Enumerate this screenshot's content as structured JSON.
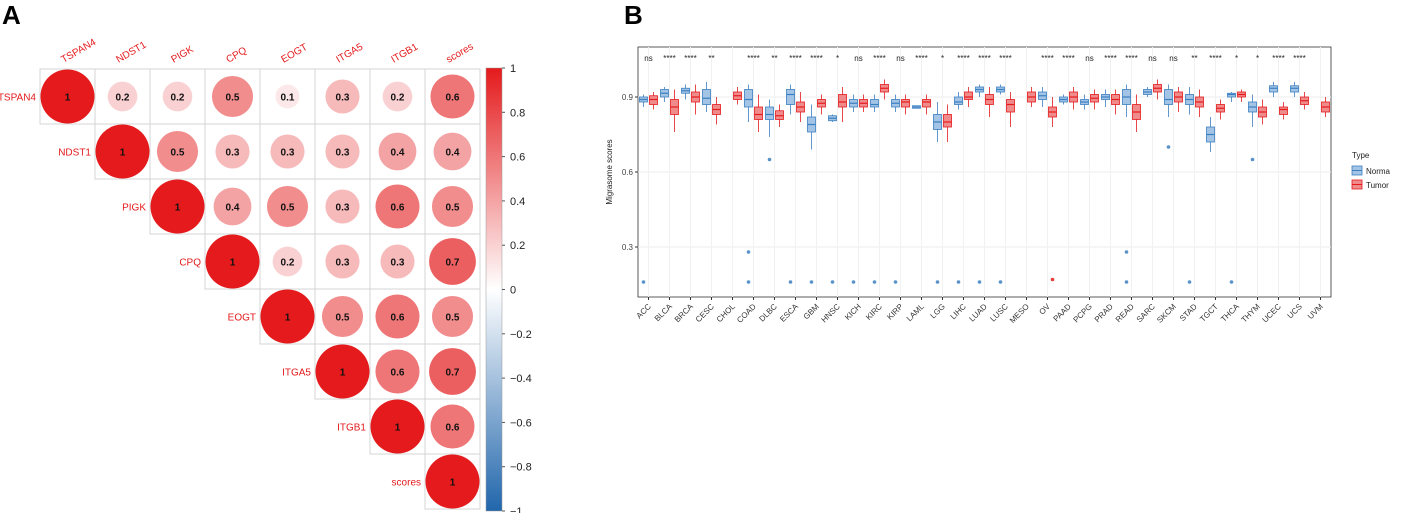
{
  "figure": {
    "panel_a_label": "A",
    "panel_b_label": "B"
  },
  "chart_data": [
    {
      "type": "heatmap",
      "panel": "A",
      "title": "",
      "style": "upper-triangle correlation circles",
      "variables": [
        "TSPAN4",
        "NDST1",
        "PIGK",
        "CPQ",
        "EOGT",
        "ITGA5",
        "ITGB1",
        "scores"
      ],
      "matrix": [
        [
          1,
          0.2,
          0.2,
          0.5,
          0.1,
          0.3,
          0.2,
          0.6
        ],
        [
          null,
          1,
          0.5,
          0.3,
          0.3,
          0.3,
          0.4,
          0.4
        ],
        [
          null,
          null,
          1,
          0.4,
          0.5,
          0.3,
          0.6,
          0.5
        ],
        [
          null,
          null,
          null,
          1,
          0.2,
          0.3,
          0.3,
          0.7
        ],
        [
          null,
          null,
          null,
          null,
          1,
          0.5,
          0.6,
          0.5
        ],
        [
          null,
          null,
          null,
          null,
          null,
          1,
          0.6,
          0.7
        ],
        [
          null,
          null,
          null,
          null,
          null,
          null,
          1,
          0.6
        ],
        [
          null,
          null,
          null,
          null,
          null,
          null,
          null,
          1
        ]
      ],
      "colorbar": {
        "range": [
          -1,
          1
        ],
        "ticks": [
          "1",
          "0.8",
          "0.6",
          "0.4",
          "0.2",
          "0",
          "−0.2",
          "−0.4",
          "−0.6",
          "−0.8",
          "−1"
        ],
        "low_color": "#2166ac",
        "mid_color": "#ffffff",
        "high_color": "#e41a1c"
      }
    },
    {
      "type": "box",
      "panel": "B",
      "title": "",
      "xlabel": "",
      "ylabel": "Migrasome scores",
      "ylim": [
        0.1,
        1.1
      ],
      "yticks": [
        0.3,
        0.6,
        0.9
      ],
      "ytick_labels": [
        "0.3",
        "0.6",
        "0.9"
      ],
      "legend": {
        "title": "Type",
        "placement": "right",
        "entries": [
          {
            "label": "Norma",
            "color": "#3a7fc1",
            "fill": "#a3c4e5"
          },
          {
            "label": "Tumor",
            "color": "#e41a1c",
            "fill": "#f08b8c"
          }
        ]
      },
      "categories": [
        "ACC",
        "BLCA",
        "BRCA",
        "CESC",
        "CHOL",
        "COAD",
        "DLBC",
        "ESCA",
        "GBM",
        "HNSC",
        "KICH",
        "KIRC",
        "KIRP",
        "LAML",
        "LGG",
        "LIHC",
        "LUAD",
        "LUSC",
        "MESO",
        "OV",
        "PAAD",
        "PCPG",
        "PRAD",
        "READ",
        "SARC",
        "SKCM",
        "STAD",
        "TGCT",
        "THCA",
        "THYM",
        "UCEC",
        "UCS",
        "UVM"
      ],
      "significance": [
        "ns",
        "****",
        "****",
        "**",
        "",
        "****",
        "**",
        "****",
        "****",
        "*",
        "ns",
        "****",
        "ns",
        "****",
        "*",
        "****",
        "****",
        "****",
        "",
        "****",
        "****",
        "ns",
        "****",
        "****",
        "ns",
        "ns",
        "**",
        "****",
        "*",
        "*",
        "****",
        "****",
        ""
      ],
      "series": [
        {
          "name": "Norma",
          "boxes": [
            {
              "q1": 0.88,
              "median": 0.89,
              "q3": 0.9,
              "low": 0.86,
              "high": 0.91
            },
            {
              "q1": 0.9,
              "median": 0.915,
              "q3": 0.93,
              "low": 0.88,
              "high": 0.94
            },
            {
              "q1": 0.915,
              "median": 0.925,
              "q3": 0.935,
              "low": 0.89,
              "high": 0.95
            },
            {
              "q1": 0.87,
              "median": 0.895,
              "q3": 0.93,
              "low": 0.84,
              "high": 0.96
            },
            null,
            {
              "q1": 0.86,
              "median": 0.89,
              "q3": 0.93,
              "low": 0.8,
              "high": 0.95
            },
            {
              "q1": 0.81,
              "median": 0.83,
              "q3": 0.86,
              "low": 0.74,
              "high": 0.89
            },
            {
              "q1": 0.87,
              "median": 0.91,
              "q3": 0.93,
              "low": 0.83,
              "high": 0.95
            },
            {
              "q1": 0.76,
              "median": 0.79,
              "q3": 0.82,
              "low": 0.69,
              "high": 0.87
            },
            {
              "q1": 0.805,
              "median": 0.815,
              "q3": 0.825,
              "low": 0.8,
              "high": 0.83
            },
            {
              "q1": 0.86,
              "median": 0.875,
              "q3": 0.89,
              "low": 0.84,
              "high": 0.91
            },
            {
              "q1": 0.86,
              "median": 0.87,
              "q3": 0.89,
              "low": 0.84,
              "high": 0.91
            },
            {
              "q1": 0.86,
              "median": 0.875,
              "q3": 0.89,
              "low": 0.84,
              "high": 0.91
            },
            {
              "q1": 0.855,
              "median": 0.86,
              "q3": 0.865,
              "low": 0.855,
              "high": 0.865
            },
            {
              "q1": 0.77,
              "median": 0.8,
              "q3": 0.83,
              "low": 0.72,
              "high": 0.88
            },
            {
              "q1": 0.87,
              "median": 0.88,
              "q3": 0.9,
              "low": 0.85,
              "high": 0.92
            },
            {
              "q1": 0.92,
              "median": 0.93,
              "q3": 0.94,
              "low": 0.9,
              "high": 0.95
            },
            {
              "q1": 0.92,
              "median": 0.93,
              "q3": 0.94,
              "low": 0.91,
              "high": 0.95
            },
            null,
            {
              "q1": 0.89,
              "median": 0.905,
              "q3": 0.92,
              "low": 0.86,
              "high": 0.94
            },
            {
              "q1": 0.88,
              "median": 0.89,
              "q3": 0.9,
              "low": 0.87,
              "high": 0.91
            },
            {
              "q1": 0.87,
              "median": 0.88,
              "q3": 0.89,
              "low": 0.85,
              "high": 0.91
            },
            {
              "q1": 0.89,
              "median": 0.9,
              "q3": 0.91,
              "low": 0.86,
              "high": 0.93
            },
            {
              "q1": 0.87,
              "median": 0.9,
              "q3": 0.93,
              "low": 0.82,
              "high": 0.95
            },
            {
              "q1": 0.91,
              "median": 0.92,
              "q3": 0.93,
              "low": 0.9,
              "high": 0.94
            },
            {
              "q1": 0.87,
              "median": 0.89,
              "q3": 0.93,
              "low": 0.82,
              "high": 0.95
            },
            {
              "q1": 0.87,
              "median": 0.89,
              "q3": 0.91,
              "low": 0.83,
              "high": 0.94
            },
            {
              "q1": 0.72,
              "median": 0.75,
              "q3": 0.78,
              "low": 0.68,
              "high": 0.82
            },
            {
              "q1": 0.9,
              "median": 0.91,
              "q3": 0.915,
              "low": 0.88,
              "high": 0.92
            },
            {
              "q1": 0.84,
              "median": 0.86,
              "q3": 0.88,
              "low": 0.78,
              "high": 0.91
            },
            {
              "q1": 0.92,
              "median": 0.935,
              "q3": 0.945,
              "low": 0.9,
              "high": 0.96
            },
            {
              "q1": 0.92,
              "median": 0.935,
              "q3": 0.945,
              "low": 0.9,
              "high": 0.96
            },
            null
          ]
        },
        {
          "name": "Tumor",
          "boxes": [
            {
              "q1": 0.87,
              "median": 0.89,
              "q3": 0.905,
              "low": 0.85,
              "high": 0.92
            },
            {
              "q1": 0.83,
              "median": 0.86,
              "q3": 0.89,
              "low": 0.76,
              "high": 0.93
            },
            {
              "q1": 0.88,
              "median": 0.9,
              "q3": 0.92,
              "low": 0.83,
              "high": 0.95
            },
            {
              "q1": 0.83,
              "median": 0.85,
              "q3": 0.87,
              "low": 0.79,
              "high": 0.9
            },
            {
              "q1": 0.89,
              "median": 0.905,
              "q3": 0.92,
              "low": 0.87,
              "high": 0.94
            },
            {
              "q1": 0.81,
              "median": 0.83,
              "q3": 0.86,
              "low": 0.76,
              "high": 0.91
            },
            {
              "q1": 0.81,
              "median": 0.825,
              "q3": 0.845,
              "low": 0.78,
              "high": 0.87
            },
            {
              "q1": 0.84,
              "median": 0.86,
              "q3": 0.88,
              "low": 0.8,
              "high": 0.92
            },
            {
              "q1": 0.86,
              "median": 0.875,
              "q3": 0.89,
              "low": 0.83,
              "high": 0.91
            },
            {
              "q1": 0.86,
              "median": 0.88,
              "q3": 0.91,
              "low": 0.8,
              "high": 0.94
            },
            {
              "q1": 0.86,
              "median": 0.875,
              "q3": 0.89,
              "low": 0.84,
              "high": 0.91
            },
            {
              "q1": 0.92,
              "median": 0.935,
              "q3": 0.95,
              "low": 0.89,
              "high": 0.97
            },
            {
              "q1": 0.86,
              "median": 0.88,
              "q3": 0.89,
              "low": 0.83,
              "high": 0.91
            },
            {
              "q1": 0.86,
              "median": 0.88,
              "q3": 0.89,
              "low": 0.83,
              "high": 0.91
            },
            {
              "q1": 0.78,
              "median": 0.8,
              "q3": 0.83,
              "low": 0.72,
              "high": 0.87
            },
            {
              "q1": 0.89,
              "median": 0.9,
              "q3": 0.92,
              "low": 0.86,
              "high": 0.94
            },
            {
              "q1": 0.87,
              "median": 0.89,
              "q3": 0.91,
              "low": 0.82,
              "high": 0.94
            },
            {
              "q1": 0.84,
              "median": 0.87,
              "q3": 0.89,
              "low": 0.78,
              "high": 0.92
            },
            {
              "q1": 0.88,
              "median": 0.9,
              "q3": 0.92,
              "low": 0.86,
              "high": 0.94
            },
            {
              "q1": 0.82,
              "median": 0.84,
              "q3": 0.86,
              "low": 0.78,
              "high": 0.9
            },
            {
              "q1": 0.88,
              "median": 0.9,
              "q3": 0.92,
              "low": 0.85,
              "high": 0.94
            },
            {
              "q1": 0.88,
              "median": 0.895,
              "q3": 0.91,
              "low": 0.85,
              "high": 0.93
            },
            {
              "q1": 0.87,
              "median": 0.89,
              "q3": 0.91,
              "low": 0.83,
              "high": 0.93
            },
            {
              "q1": 0.81,
              "median": 0.84,
              "q3": 0.87,
              "low": 0.76,
              "high": 0.91
            },
            {
              "q1": 0.92,
              "median": 0.935,
              "q3": 0.95,
              "low": 0.89,
              "high": 0.97
            },
            {
              "q1": 0.88,
              "median": 0.9,
              "q3": 0.92,
              "low": 0.84,
              "high": 0.94
            },
            {
              "q1": 0.86,
              "median": 0.88,
              "q3": 0.9,
              "low": 0.82,
              "high": 0.93
            },
            {
              "q1": 0.84,
              "median": 0.855,
              "q3": 0.87,
              "low": 0.81,
              "high": 0.89
            },
            {
              "q1": 0.9,
              "median": 0.91,
              "q3": 0.92,
              "low": 0.88,
              "high": 0.93
            },
            {
              "q1": 0.82,
              "median": 0.84,
              "q3": 0.86,
              "low": 0.79,
              "high": 0.89
            },
            {
              "q1": 0.83,
              "median": 0.85,
              "q3": 0.86,
              "low": 0.81,
              "high": 0.88
            },
            {
              "q1": 0.87,
              "median": 0.885,
              "q3": 0.9,
              "low": 0.85,
              "high": 0.92
            },
            {
              "q1": 0.84,
              "median": 0.86,
              "q3": 0.88,
              "low": 0.82,
              "high": 0.9
            }
          ]
        }
      ],
      "outliers": [
        {
          "category": "ACC",
          "series": "Norma",
          "y": 0.16
        },
        {
          "category": "COAD",
          "series": "Norma",
          "y": 0.28
        },
        {
          "category": "COAD",
          "series": "Norma",
          "y": 0.16
        },
        {
          "category": "ESCA",
          "series": "Norma",
          "y": 0.16
        },
        {
          "category": "GBM",
          "series": "Norma",
          "y": 0.16
        },
        {
          "category": "HNSC",
          "series": "Norma",
          "y": 0.16
        },
        {
          "category": "KICH",
          "series": "Norma",
          "y": 0.16
        },
        {
          "category": "KIRC",
          "series": "Norma",
          "y": 0.16
        },
        {
          "category": "KIRP",
          "series": "Norma",
          "y": 0.16
        },
        {
          "category": "LGG",
          "series": "Norma",
          "y": 0.16
        },
        {
          "category": "LIHC",
          "series": "Norma",
          "y": 0.16
        },
        {
          "category": "LUAD",
          "series": "Norma",
          "y": 0.16
        },
        {
          "category": "LUSC",
          "series": "Norma",
          "y": 0.16
        },
        {
          "category": "OV",
          "series": "Tumor",
          "y": 0.17
        },
        {
          "category": "READ",
          "series": "Norma",
          "y": 0.28
        },
        {
          "category": "READ",
          "series": "Norma",
          "y": 0.16
        },
        {
          "category": "STAD",
          "series": "Norma",
          "y": 0.16
        },
        {
          "category": "THCA",
          "series": "Norma",
          "y": 0.16
        },
        {
          "category": "SKCM",
          "series": "Norma",
          "y": 0.7
        },
        {
          "category": "DLBC",
          "series": "Norma",
          "y": 0.65
        },
        {
          "category": "THYM",
          "series": "Norma",
          "y": 0.65
        }
      ]
    }
  ]
}
